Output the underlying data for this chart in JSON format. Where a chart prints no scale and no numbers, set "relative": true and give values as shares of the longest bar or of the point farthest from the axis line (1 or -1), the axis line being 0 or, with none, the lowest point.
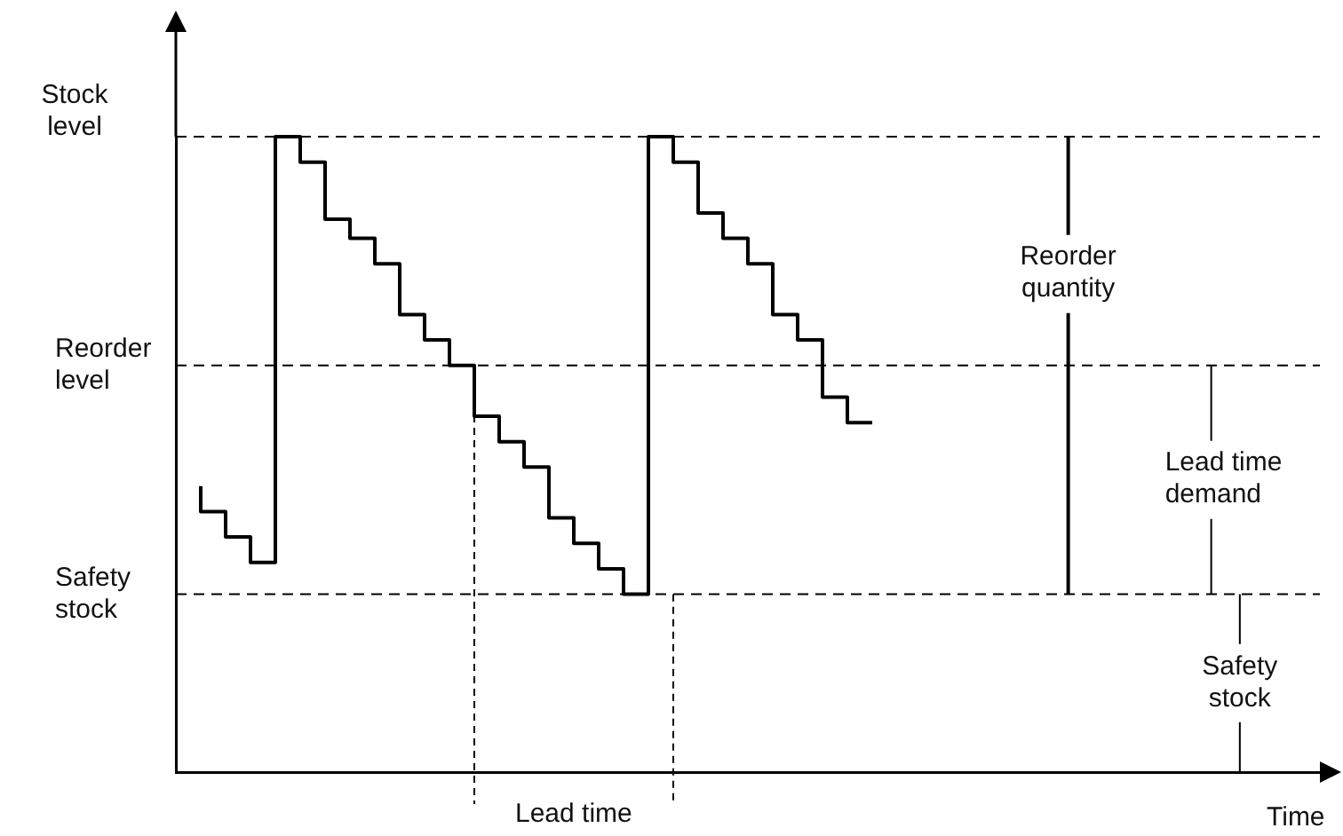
{
  "chart_data": {
    "type": "step",
    "relative": true,
    "ylabel": "Stock level",
    "xlabel": "Time",
    "categories": [
      null,
      null,
      null,
      null,
      null,
      null,
      null,
      null,
      null,
      null,
      null,
      null,
      null,
      null,
      null,
      null,
      null,
      null,
      null,
      null,
      null,
      null,
      null,
      null,
      null,
      null,
      null,
      null,
      null,
      null,
      null,
      null,
      null,
      null,
      null,
      null,
      null,
      null,
      null,
      null,
      null,
      null,
      null,
      null,
      null,
      null,
      null
    ],
    "series": [
      {
        "color": "#000000",
        "values": [
          null,
          0.45,
          0.41,
          0.37,
          0.33,
          1,
          0.96,
          0.87,
          0.84,
          0.8,
          0.72,
          0.68,
          0.64,
          0.56,
          0.52,
          0.48,
          0.4,
          0.36,
          0.32,
          0.28,
          1,
          0.96,
          0.88,
          0.84,
          0.8,
          0.72,
          0.68,
          0.59,
          0.55,
          null,
          null,
          null,
          null,
          null,
          null,
          null,
          null,
          null,
          null,
          null,
          null,
          null,
          null,
          null,
          null,
          null,
          null
        ]
      }
    ],
    "ref_lines": [
      {
        "axis": "y",
        "value": 1,
        "label": null,
        "color": "#000000",
        "line_style": "dashed"
      },
      {
        "axis": "y",
        "value": 0.64,
        "label": "Reorder level",
        "color": "#000000",
        "line_style": "dashed"
      },
      {
        "axis": "y",
        "value": 0.28,
        "label": "Safety stock",
        "color": "#000000",
        "line_style": "dashed"
      }
    ],
    "annotations": [
      "Reorder quantity",
      "Lead time demand",
      "Safety stock",
      "Lead time"
    ],
    "line_style": "solid",
    "marker": "none",
    "grid": false,
    "legend": false
  }
}
